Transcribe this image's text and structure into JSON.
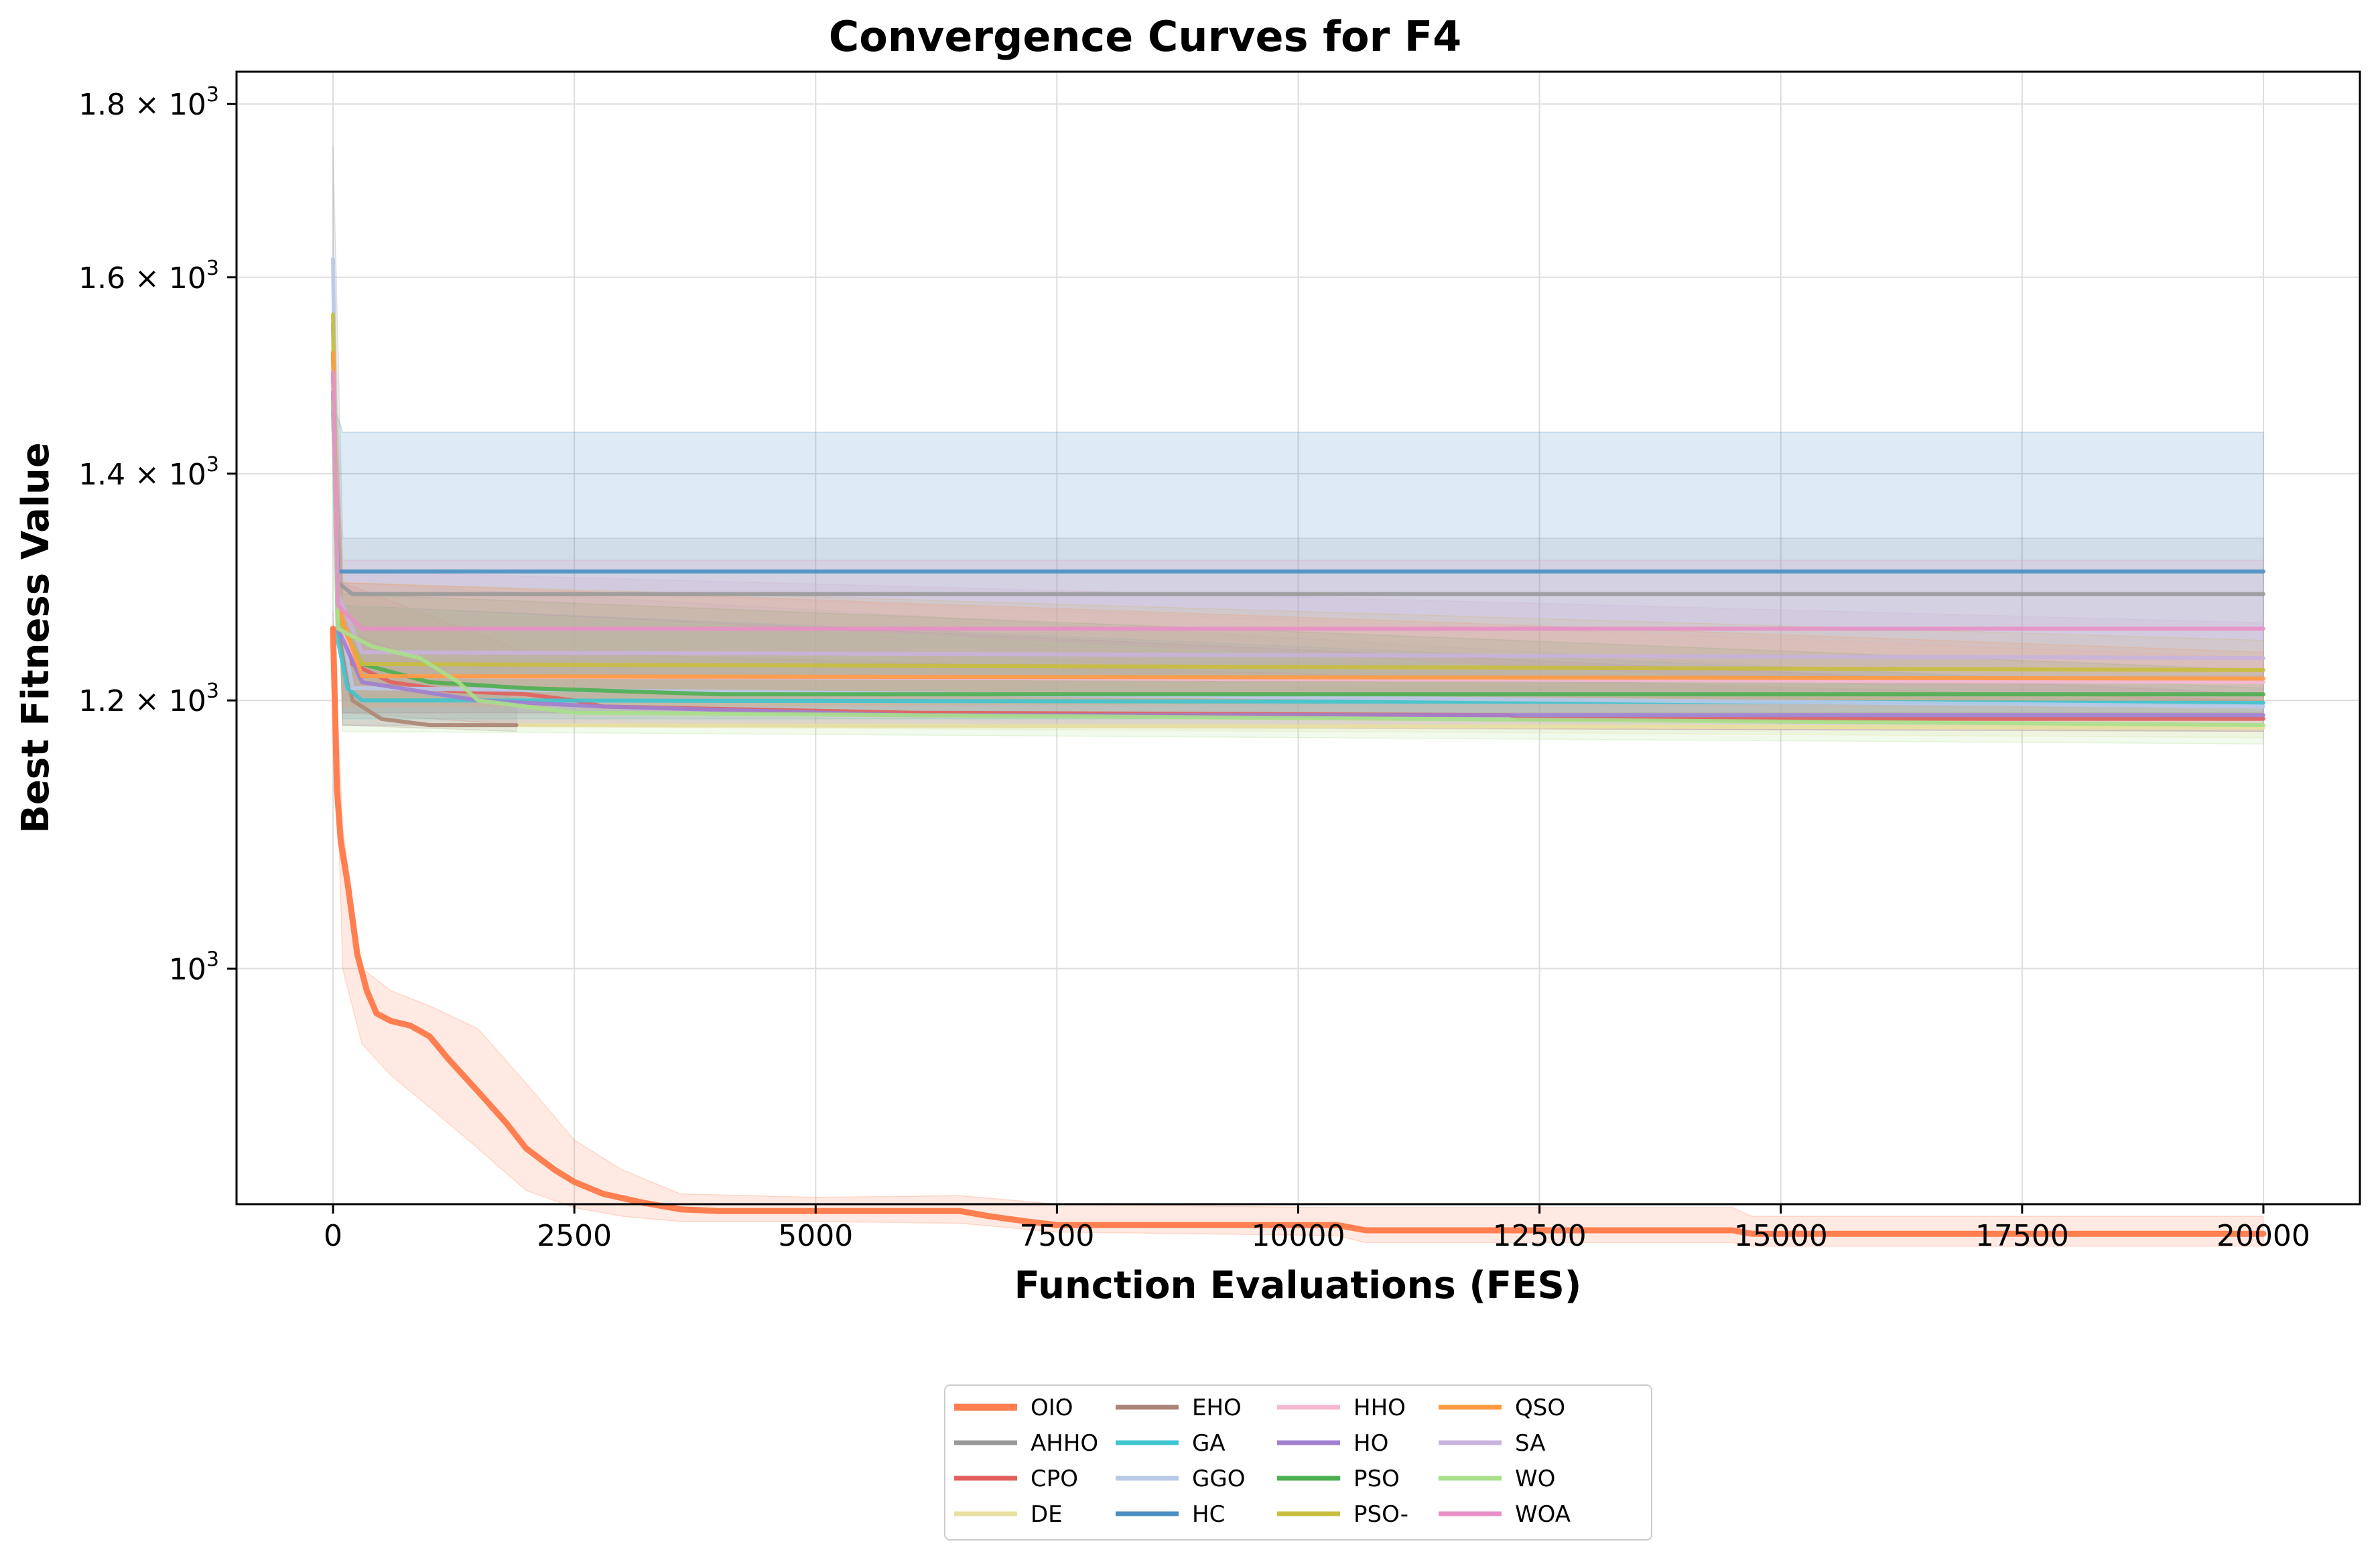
{
  "chart_data": {
    "type": "line",
    "title": "Convergence Curves for F4",
    "xlabel": "Function Evaluations (FES)",
    "ylabel": "Best Fitness Value",
    "x_scale": "linear",
    "y_scale": "log",
    "xlim": [
      -1000,
      21000
    ],
    "ylim": [
      852,
      1840
    ],
    "x_ticks": [
      0,
      2500,
      5000,
      7500,
      10000,
      12500,
      15000,
      17500,
      20000
    ],
    "x_tick_labels": [
      "0",
      "2500",
      "5000",
      "7500",
      "10000",
      "12500",
      "15000",
      "17500",
      "20000"
    ],
    "y_ticks": [
      1000,
      1200,
      1400,
      1600,
      1800
    ],
    "y_tick_labels": [
      {
        "base": "10",
        "exp": "3"
      },
      {
        "base": "1.2 × 10",
        "exp": "3"
      },
      {
        "base": "1.4 × 10",
        "exp": "3"
      },
      {
        "base": "1.6 × 10",
        "exp": "3"
      },
      {
        "base": "1.8 × 10",
        "exp": "3"
      }
    ],
    "grid": true,
    "legend": {
      "placement": "bottom-center",
      "columns": 4
    },
    "series": [
      {
        "name": "OIO",
        "color": "#ff7f50",
        "width": 3,
        "points": [
          [
            0,
            1260
          ],
          [
            40,
            1130
          ],
          [
            80,
            1090
          ],
          [
            150,
            1060
          ],
          [
            250,
            1010
          ],
          [
            350,
            985
          ],
          [
            450,
            970
          ],
          [
            600,
            965
          ],
          [
            800,
            962
          ],
          [
            1000,
            955
          ],
          [
            1200,
            940
          ],
          [
            1500,
            920
          ],
          [
            1800,
            900
          ],
          [
            2000,
            885
          ],
          [
            2300,
            872
          ],
          [
            2500,
            865
          ],
          [
            2800,
            858
          ],
          [
            3200,
            853
          ],
          [
            3600,
            849
          ],
          [
            4000,
            848
          ],
          [
            5000,
            848
          ],
          [
            6500,
            848
          ],
          [
            6800,
            845
          ],
          [
            7200,
            842
          ],
          [
            7500,
            840
          ],
          [
            9000,
            840
          ],
          [
            10400,
            840
          ],
          [
            10700,
            837
          ],
          [
            12000,
            837
          ],
          [
            14500,
            837
          ],
          [
            14700,
            835
          ],
          [
            20000,
            835
          ]
        ],
        "band": [
          [
            0,
            1250,
            1275
          ],
          [
            100,
            1000,
            1100
          ],
          [
            300,
            950,
            1000
          ],
          [
            600,
            930,
            985
          ],
          [
            1000,
            910,
            975
          ],
          [
            1500,
            885,
            960
          ],
          [
            2000,
            860,
            925
          ],
          [
            2500,
            850,
            890
          ],
          [
            3000,
            845,
            872
          ],
          [
            3600,
            842,
            858
          ],
          [
            5000,
            842,
            856
          ],
          [
            6500,
            841,
            857
          ],
          [
            7500,
            836,
            852
          ],
          [
            10400,
            834,
            850
          ],
          [
            10700,
            830,
            850
          ],
          [
            14500,
            830,
            850
          ],
          [
            14700,
            828,
            845
          ],
          [
            20000,
            828,
            845
          ]
        ]
      },
      {
        "name": "AHHO",
        "color": "#999999",
        "width": 2,
        "points": [
          [
            0,
            1550
          ],
          [
            50,
            1300
          ],
          [
            200,
            1290
          ],
          [
            20000,
            1290
          ]
        ],
        "band": [
          [
            0,
            1500,
            1750
          ],
          [
            100,
            1220,
            1340
          ],
          [
            20000,
            1220,
            1340
          ]
        ]
      },
      {
        "name": "CPO",
        "color": "#e0605e",
        "width": 2,
        "points": [
          [
            0,
            1480
          ],
          [
            50,
            1280
          ],
          [
            200,
            1230
          ],
          [
            600,
            1215
          ],
          [
            1200,
            1208
          ],
          [
            2000,
            1205
          ],
          [
            2500,
            1200
          ],
          [
            2800,
            1195
          ],
          [
            6000,
            1190
          ],
          [
            12200,
            1188
          ],
          [
            12300,
            1185
          ],
          [
            20000,
            1185
          ]
        ],
        "band": [
          [
            0,
            1460,
            1500
          ],
          [
            100,
            1190,
            1300
          ],
          [
            2000,
            1180,
            1240
          ],
          [
            20000,
            1175,
            1200
          ]
        ]
      },
      {
        "name": "DE",
        "color": "#e8e0a0",
        "width": 2,
        "points": [
          [
            0,
            1530
          ],
          [
            50,
            1260
          ],
          [
            200,
            1200
          ],
          [
            500,
            1185
          ],
          [
            1000,
            1180
          ],
          [
            20000,
            1178
          ]
        ],
        "band": [
          [
            0,
            1500,
            1560
          ],
          [
            100,
            1180,
            1260
          ],
          [
            20000,
            1170,
            1190
          ]
        ]
      },
      {
        "name": "EHO",
        "color": "#a98478",
        "width": 2,
        "points": [
          [
            0,
            1520
          ],
          [
            50,
            1260
          ],
          [
            200,
            1200
          ],
          [
            500,
            1185
          ],
          [
            1000,
            1180
          ],
          [
            1900,
            1180
          ]
        ],
        "band": [
          [
            0,
            1500,
            1550
          ],
          [
            100,
            1180,
            1260
          ],
          [
            1900,
            1175,
            1200
          ]
        ]
      },
      {
        "name": "GA",
        "color": "#3fc5cf",
        "width": 2,
        "points": [
          [
            0,
            1480
          ],
          [
            50,
            1250
          ],
          [
            150,
            1210
          ],
          [
            300,
            1200
          ],
          [
            1000,
            1200
          ],
          [
            20000,
            1198
          ]
        ],
        "band": [
          [
            0,
            1470,
            1490
          ],
          [
            100,
            1185,
            1280
          ],
          [
            20000,
            1185,
            1210
          ]
        ]
      },
      {
        "name": "GGO",
        "color": "#b9c9e8",
        "width": 2,
        "points": [
          [
            0,
            1620
          ],
          [
            50,
            1280
          ],
          [
            200,
            1210
          ],
          [
            20000,
            1195
          ]
        ],
        "band": [
          [
            0,
            1600,
            1640
          ],
          [
            100,
            1190,
            1300
          ],
          [
            20000,
            1185,
            1205
          ]
        ]
      },
      {
        "name": "HC",
        "color": "#4a8fc2",
        "width": 2,
        "points": [
          [
            0,
            1460
          ],
          [
            50,
            1310
          ],
          [
            20000,
            1310
          ]
        ],
        "band": [
          [
            0,
            1450,
            1470
          ],
          [
            100,
            1200,
            1440
          ],
          [
            20000,
            1200,
            1440
          ]
        ]
      },
      {
        "name": "HHO",
        "color": "#f5b8d1",
        "width": 2,
        "points": [
          [
            0,
            1500
          ],
          [
            50,
            1270
          ],
          [
            300,
            1220
          ],
          [
            20000,
            1215
          ]
        ],
        "band": [
          [
            0,
            1480,
            1520
          ],
          [
            100,
            1195,
            1300
          ],
          [
            20000,
            1195,
            1235
          ]
        ]
      },
      {
        "name": "HO",
        "color": "#a07fd0",
        "width": 2,
        "points": [
          [
            0,
            1500
          ],
          [
            50,
            1260
          ],
          [
            300,
            1215
          ],
          [
            1500,
            1200
          ],
          [
            2800,
            1195
          ],
          [
            6000,
            1188
          ],
          [
            20000,
            1188
          ]
        ],
        "band": [
          [
            0,
            1480,
            1520
          ],
          [
            100,
            1180,
            1280
          ],
          [
            20000,
            1175,
            1205
          ]
        ]
      },
      {
        "name": "PSO",
        "color": "#4caf50",
        "width": 2,
        "points": [
          [
            0,
            1470
          ],
          [
            50,
            1270
          ],
          [
            300,
            1230
          ],
          [
            1000,
            1215
          ],
          [
            2000,
            1210
          ],
          [
            4000,
            1205
          ],
          [
            20000,
            1205
          ]
        ],
        "band": [
          [
            0,
            1460,
            1480
          ],
          [
            100,
            1190,
            1290
          ],
          [
            20000,
            1190,
            1225
          ]
        ]
      },
      {
        "name": "PSO-",
        "color": "#c8be3e",
        "width": 2,
        "points": [
          [
            0,
            1560
          ],
          [
            50,
            1270
          ],
          [
            300,
            1230
          ],
          [
            20000,
            1225
          ]
        ],
        "band": [
          [
            0,
            1540,
            1580
          ],
          [
            100,
            1200,
            1300
          ],
          [
            20000,
            1200,
            1250
          ]
        ]
      },
      {
        "name": "QSO",
        "color": "#ff9a40",
        "width": 2,
        "points": [
          [
            0,
            1520
          ],
          [
            50,
            1280
          ],
          [
            300,
            1220
          ],
          [
            20000,
            1218
          ]
        ],
        "band": [
          [
            0,
            1500,
            1540
          ],
          [
            100,
            1195,
            1300
          ],
          [
            20000,
            1200,
            1240
          ]
        ]
      },
      {
        "name": "SA",
        "color": "#c8b3dc",
        "width": 2,
        "points": [
          [
            0,
            1500
          ],
          [
            50,
            1290
          ],
          [
            300,
            1240
          ],
          [
            20000,
            1235
          ]
        ],
        "band": [
          [
            0,
            1480,
            1520
          ],
          [
            100,
            1200,
            1310
          ],
          [
            20000,
            1205,
            1265
          ]
        ]
      },
      {
        "name": "WO",
        "color": "#a8e08a",
        "width": 2,
        "points": [
          [
            0,
            1470
          ],
          [
            50,
            1260
          ],
          [
            400,
            1245
          ],
          [
            900,
            1235
          ],
          [
            1300,
            1215
          ],
          [
            1500,
            1200
          ],
          [
            2500,
            1190
          ],
          [
            20000,
            1180
          ]
        ],
        "band": [
          [
            0,
            1460,
            1480
          ],
          [
            100,
            1175,
            1280
          ],
          [
            20000,
            1165,
            1195
          ]
        ]
      },
      {
        "name": "WOA",
        "color": "#e88fc6",
        "width": 2,
        "points": [
          [
            0,
            1500
          ],
          [
            50,
            1280
          ],
          [
            300,
            1260
          ],
          [
            20000,
            1260
          ]
        ],
        "band": [
          [
            0,
            1480,
            1520
          ],
          [
            100,
            1190,
            1320
          ],
          [
            20000,
            1190,
            1320
          ]
        ]
      }
    ]
  }
}
